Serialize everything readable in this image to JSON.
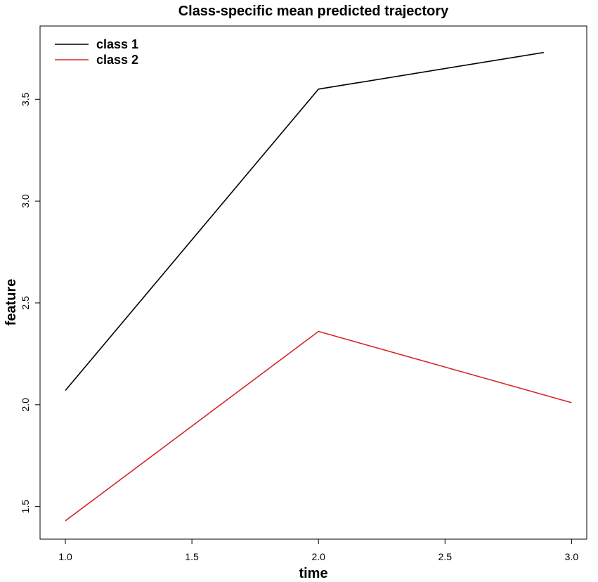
{
  "chart_data": {
    "type": "line",
    "title": "Class-specific mean predicted trajectory",
    "xlabel": "time",
    "ylabel": "feature",
    "series": [
      {
        "name": "class 1",
        "color": "#000000",
        "x": [
          1,
          2,
          2.89
        ],
        "values": [
          2.07,
          3.55,
          3.73
        ]
      },
      {
        "name": "class 2",
        "color": "#d62728",
        "x": [
          1,
          2,
          3
        ],
        "values": [
          1.43,
          2.36,
          2.01
        ]
      }
    ],
    "xlim": [
      0.9,
      3.06
    ],
    "ylim": [
      1.34,
      3.86
    ],
    "xticks": [
      {
        "value": 1,
        "label": "1.0"
      },
      1.5,
      {
        "value": 2,
        "label": "2.0"
      },
      2.5,
      {
        "value": 3,
        "label": "3.0"
      }
    ],
    "yticks": [
      1.5,
      {
        "value": 2,
        "label": "2.0"
      },
      2.5,
      {
        "value": 3,
        "label": "3.0"
      },
      3.5
    ],
    "legend": "top-left"
  }
}
